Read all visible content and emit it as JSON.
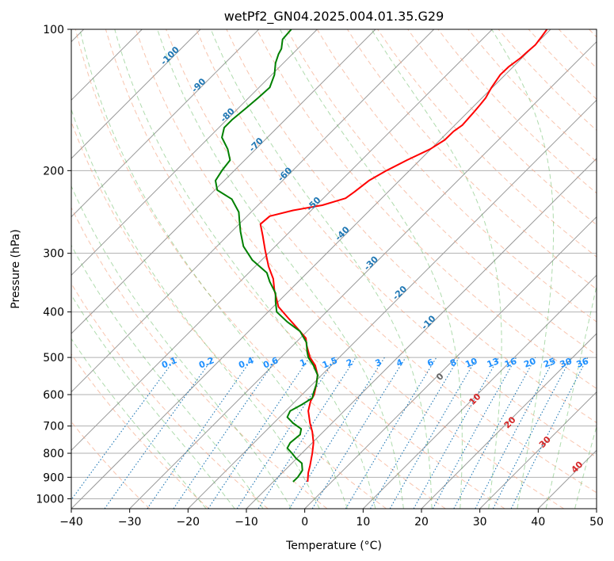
{
  "chart_data": {
    "type": "line",
    "title": "wetPf2_GN04.2025.004.01.35.G29",
    "xlabel": "Temperature (°C)",
    "ylabel": "Pressure (hPa)",
    "xlim": [
      -40,
      50
    ],
    "ylim": [
      1050,
      100
    ],
    "y_scale": "log",
    "x_ticks": [
      -40,
      -30,
      -20,
      -10,
      0,
      10,
      20,
      30,
      40,
      50
    ],
    "y_ticks": [
      100,
      200,
      300,
      400,
      500,
      600,
      700,
      800,
      900,
      1000
    ],
    "grid": true,
    "colors": {
      "temperature": "#ff0000",
      "dewpoint": "#008000",
      "dry_adiabat": "#f4a582",
      "moist_adiabat": "#4daf4a",
      "mixing_ratio": "#1f77b4",
      "isotherm": "#999999",
      "mixing_label": "#1e90ff",
      "adiabat_label": "#1f77b4",
      "moist_label": "#d62728"
    },
    "isotherm_labels": [
      "-100",
      "-90",
      "-80",
      "-70",
      "-60",
      "-50",
      "-40",
      "-30",
      "-20",
      "-10"
    ],
    "mixing_ratio_labels": [
      "0.1",
      "0.2",
      "0.4",
      "0.6",
      "1",
      "1.5",
      "2",
      "3",
      "4",
      "6",
      "8",
      "10",
      "13",
      "16",
      "20",
      "25",
      "30",
      "36"
    ],
    "moist_adiabat_labels": [
      "0",
      "10",
      "20",
      "30",
      "40"
    ],
    "series": [
      {
        "key": "temperature",
        "points": [
          [
            0.5,
            920
          ],
          [
            0.6,
            880
          ],
          [
            0.9,
            850
          ],
          [
            1.3,
            800
          ],
          [
            1.5,
            760
          ],
          [
            1.3,
            720
          ],
          [
            0.9,
            690
          ],
          [
            0.6,
            650
          ],
          [
            1.0,
            620
          ],
          [
            1.6,
            600
          ],
          [
            2.0,
            570
          ],
          [
            2.2,
            545
          ],
          [
            1.8,
            520
          ],
          [
            0.9,
            500
          ],
          [
            0.6,
            485
          ],
          [
            0.3,
            470
          ],
          [
            0.2,
            455
          ],
          [
            -1.5,
            430
          ],
          [
            -3.0,
            410
          ],
          [
            -4.5,
            390
          ],
          [
            -5.2,
            360
          ],
          [
            -5.4,
            340
          ],
          [
            -6.2,
            320
          ],
          [
            -6.8,
            295
          ],
          [
            -7.2,
            275
          ],
          [
            -7.6,
            260
          ],
          [
            -6.0,
            250
          ],
          [
            -2.0,
            243
          ],
          [
            3.0,
            237
          ],
          [
            7.0,
            229
          ],
          [
            8.5,
            222
          ],
          [
            11.0,
            210
          ],
          [
            14.0,
            200
          ],
          [
            17.5,
            190
          ],
          [
            21.5,
            180
          ],
          [
            24.0,
            172
          ],
          [
            25.5,
            165
          ],
          [
            27.0,
            160
          ],
          [
            29.0,
            150
          ],
          [
            30.0,
            145
          ],
          [
            31.0,
            140
          ],
          [
            32.0,
            133
          ],
          [
            33.5,
            125
          ],
          [
            35.0,
            120
          ],
          [
            37.0,
            115
          ],
          [
            38.0,
            112
          ],
          [
            39.5,
            108
          ],
          [
            40.5,
            104
          ],
          [
            41.5,
            100
          ]
        ]
      },
      {
        "key": "dewpoint",
        "points": [
          [
            -2.0,
            920
          ],
          [
            -1.2,
            900
          ],
          [
            -0.4,
            870
          ],
          [
            -0.5,
            840
          ],
          [
            -1.5,
            820
          ],
          [
            -2.2,
            800
          ],
          [
            -3.0,
            780
          ],
          [
            -2.5,
            760
          ],
          [
            -0.8,
            730
          ],
          [
            -0.6,
            710
          ],
          [
            -2.0,
            690
          ],
          [
            -3.0,
            670
          ],
          [
            -2.5,
            650
          ],
          [
            -0.5,
            630
          ],
          [
            1.3,
            610
          ],
          [
            1.5,
            595
          ],
          [
            2.0,
            570
          ],
          [
            2.2,
            545
          ],
          [
            1.5,
            520
          ],
          [
            0.6,
            500
          ],
          [
            0.4,
            485
          ],
          [
            0.3,
            465
          ],
          [
            -0.8,
            440
          ],
          [
            -3.0,
            420
          ],
          [
            -4.8,
            400
          ],
          [
            -5.0,
            380
          ],
          [
            -5.0,
            365
          ],
          [
            -6.0,
            345
          ],
          [
            -6.5,
            330
          ],
          [
            -9.0,
            310
          ],
          [
            -10.5,
            290
          ],
          [
            -11.0,
            270
          ],
          [
            -11.2,
            255
          ],
          [
            -11.3,
            245
          ],
          [
            -12.5,
            230
          ],
          [
            -15.0,
            220
          ],
          [
            -15.3,
            210
          ],
          [
            -14.2,
            200
          ],
          [
            -12.8,
            190
          ],
          [
            -13.2,
            180
          ],
          [
            -14.2,
            170
          ],
          [
            -13.8,
            162
          ],
          [
            -12.5,
            156
          ],
          [
            -10.0,
            147
          ],
          [
            -8.0,
            140
          ],
          [
            -6.0,
            133
          ],
          [
            -5.2,
            125
          ],
          [
            -5.0,
            118
          ],
          [
            -4.5,
            113
          ],
          [
            -4.0,
            110
          ],
          [
            -3.8,
            105
          ],
          [
            -2.3,
            100
          ]
        ]
      }
    ]
  }
}
